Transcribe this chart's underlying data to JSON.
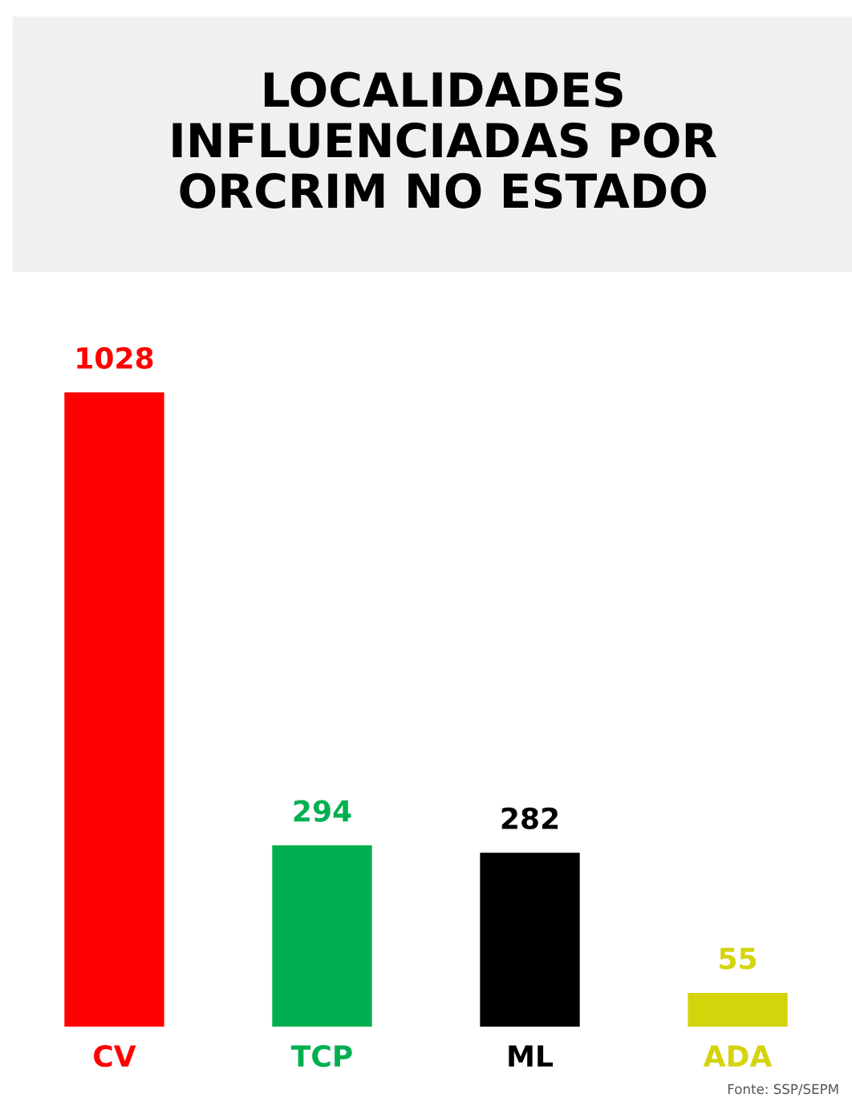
{
  "chart_data": {
    "type": "bar",
    "title": "LOCALIDADES\nINFLUENCIADAS POR\nORCRIM NO ESTADO",
    "categories": [
      "CV",
      "TCP",
      "ML",
      "ADA"
    ],
    "values": [
      1028,
      294,
      282,
      55
    ],
    "colors": [
      "#ff0000",
      "#00b050",
      "#000000",
      "#d4d40c"
    ],
    "data_labels": true,
    "annotations": [
      "Fonte: SSP/SEPM"
    ]
  }
}
